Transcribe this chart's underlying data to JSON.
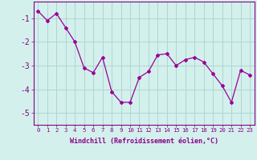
{
  "x": [
    0,
    1,
    2,
    3,
    4,
    5,
    6,
    7,
    8,
    9,
    10,
    11,
    12,
    13,
    14,
    15,
    16,
    17,
    18,
    19,
    20,
    21,
    22,
    23
  ],
  "y": [
    -0.7,
    -1.1,
    -0.8,
    -1.4,
    -2.0,
    -3.1,
    -3.3,
    -2.65,
    -4.1,
    -4.55,
    -4.55,
    -3.5,
    -3.25,
    -2.55,
    -2.5,
    -3.0,
    -2.75,
    -2.65,
    -2.85,
    -3.35,
    -3.85,
    -4.55,
    -3.2,
    -3.4
  ],
  "line_color": "#990099",
  "marker": "D",
  "marker_size": 2,
  "bg_color": "#d4f0ec",
  "grid_color": "#aad8d2",
  "xlabel": "Windchill (Refroidissement éolien,°C)",
  "ylim": [
    -5.5,
    -0.3
  ],
  "xlim": [
    -0.5,
    23.5
  ],
  "yticks": [
    -5,
    -4,
    -3,
    -2,
    -1
  ],
  "ytick_labels": [
    "-5",
    "-4",
    "-3",
    "-2",
    "-1"
  ],
  "xticks": [
    0,
    1,
    2,
    3,
    4,
    5,
    6,
    7,
    8,
    9,
    10,
    11,
    12,
    13,
    14,
    15,
    16,
    17,
    18,
    19,
    20,
    21,
    22,
    23
  ],
  "tick_color": "#880088",
  "label_color": "#880088",
  "spine_color": "#880088",
  "xlabel_fontsize": 6.0,
  "ytick_fontsize": 7.0,
  "xtick_fontsize": 5.2
}
